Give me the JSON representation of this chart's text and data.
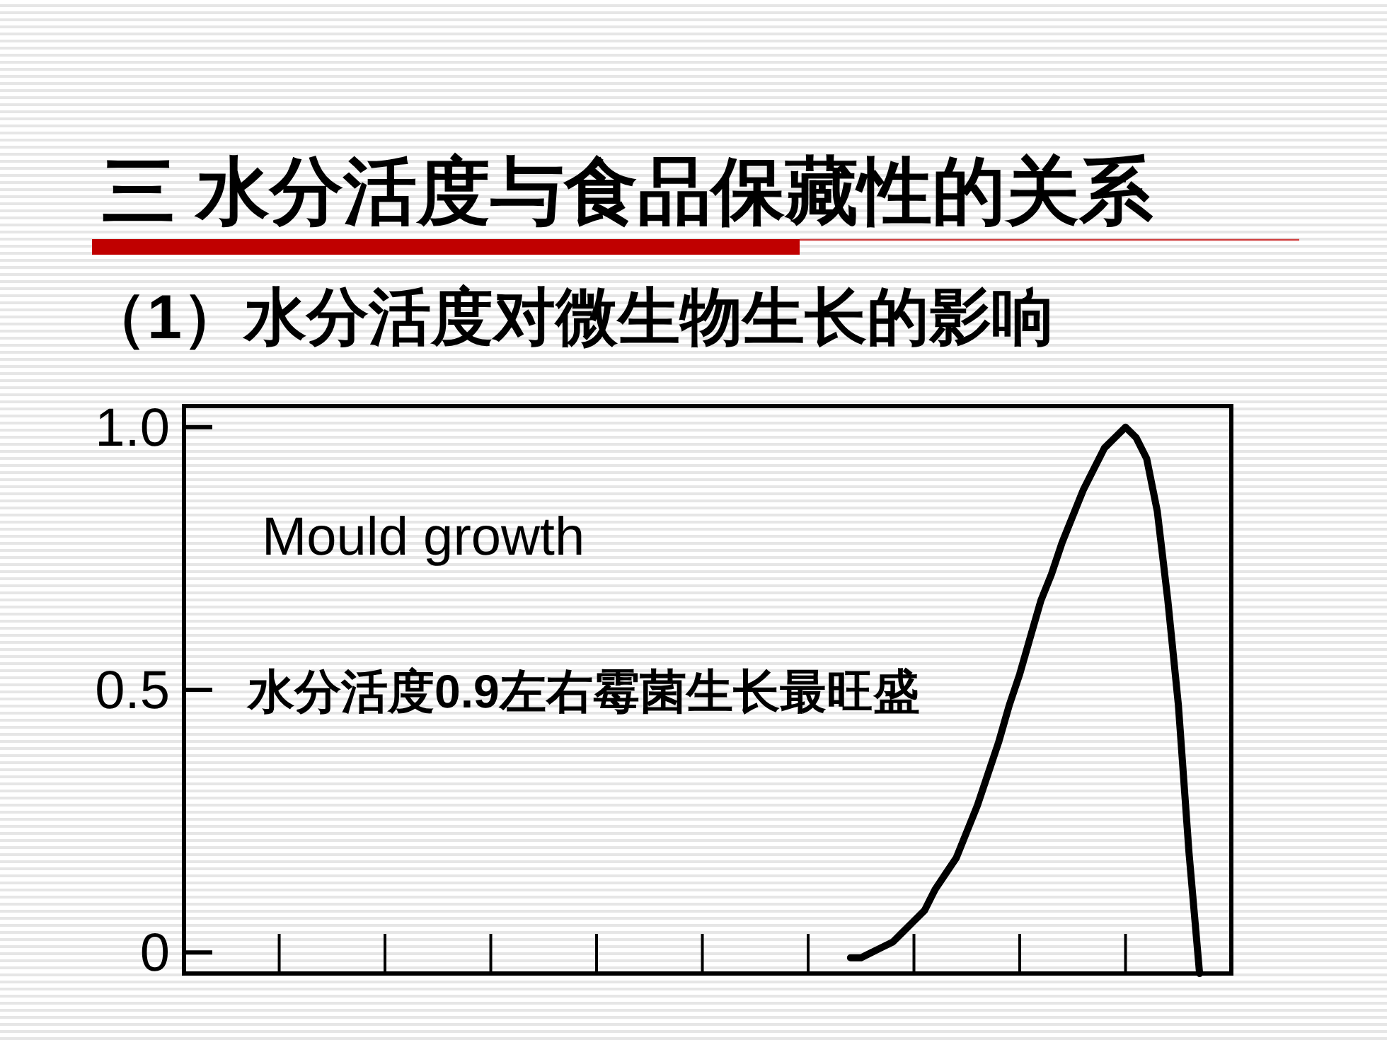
{
  "chart_data": {
    "type": "line",
    "title": "三 水分活度与食品保藏性的关系",
    "subtitle": "（1）水分活度对微生物生长的影响",
    "annotations": [
      "Mould growth",
      "水分活度0.9左右霉菌生长最旺盛"
    ],
    "categories": [
      null,
      null,
      null,
      null,
      null,
      null,
      null,
      null,
      null,
      null,
      null,
      null,
      null,
      null,
      null,
      null,
      null,
      null,
      null,
      null,
      null,
      null,
      null,
      null,
      null,
      null,
      null,
      null,
      null,
      null,
      null,
      null,
      null,
      null,
      null,
      null,
      null,
      null,
      null,
      null,
      null,
      null,
      null,
      null,
      null,
      null,
      null,
      null,
      null,
      null,
      null,
      null,
      null,
      null,
      null,
      null,
      null,
      null,
      null,
      null,
      null,
      null,
      null,
      null,
      null,
      null,
      null,
      null,
      null,
      null,
      null,
      null,
      null,
      null,
      null,
      null,
      null,
      null,
      null,
      null,
      null,
      null,
      null,
      null,
      null,
      null,
      null,
      null,
      null,
      null,
      null,
      null,
      null,
      null,
      null,
      null,
      null,
      null,
      null,
      null
    ],
    "series": [
      {
        "color": "#000000",
        "values": [
          null,
          null,
          null,
          null,
          null,
          null,
          null,
          null,
          null,
          null,
          null,
          null,
          null,
          null,
          null,
          null,
          null,
          null,
          null,
          null,
          null,
          null,
          null,
          null,
          null,
          null,
          null,
          null,
          null,
          null,
          null,
          null,
          null,
          null,
          null,
          null,
          null,
          null,
          null,
          null,
          null,
          null,
          null,
          null,
          null,
          null,
          null,
          null,
          null,
          null,
          null,
          null,
          null,
          null,
          null,
          null,
          null,
          null,
          null,
          null,
          null,
          null,
          null,
          -0.01,
          -0.01,
          0,
          0.01,
          0.02,
          0.04,
          0.06,
          0.08,
          0.12,
          0.15,
          0.18,
          0.23,
          0.28,
          0.34,
          0.4,
          0.47,
          0.53,
          0.6,
          0.67,
          0.72,
          0.78,
          0.83,
          0.88,
          0.92,
          0.96,
          0.98,
          1.0,
          0.98,
          0.94,
          0.84,
          0.67,
          0.47,
          0.19,
          -0.04,
          null,
          null,
          null
        ]
      }
    ],
    "ylim": [
      -0.04,
      1.04
    ],
    "yticks": [
      0,
      0.5,
      {
        "value": 1,
        "label": "1.0"
      }
    ],
    "tick_labels": "y",
    "line_style": "solid"
  }
}
